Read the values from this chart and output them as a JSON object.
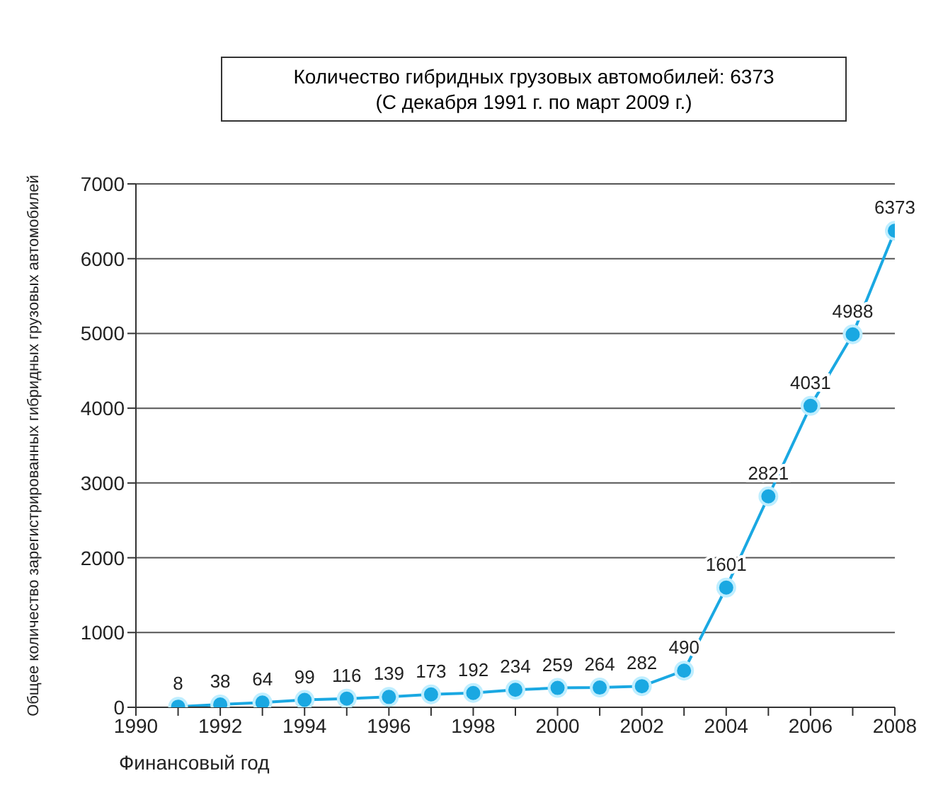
{
  "chart_data": {
    "type": "line",
    "ylabel": "Общее количество зарегистрированных гибридных грузовых автомобилей",
    "xlabel": "Финансовый год",
    "annotations": [
      "Количество гибридных грузовых автомобилей: 6373",
      "(С декабря 1991 г. по март 2009 г.)"
    ],
    "x": [
      1991,
      1992,
      1993,
      1994,
      1995,
      1996,
      1997,
      1998,
      1999,
      2000,
      2001,
      2002,
      2003,
      2004,
      2005,
      2006,
      2007,
      2008
    ],
    "series": [
      {
        "color": "#1aa8e2",
        "values": [
          8,
          38,
          64,
          99,
          116,
          139,
          173,
          192,
          234,
          259,
          264,
          282,
          490,
          1601,
          2821,
          4031,
          4988,
          6373
        ]
      }
    ],
    "xlim": [
      1990,
      2008
    ],
    "xticks": [
      1990,
      {
        "value": 1991,
        "label": null
      },
      1992,
      {
        "value": 1993,
        "label": null
      },
      1994,
      {
        "value": 1995,
        "label": null
      },
      1996,
      {
        "value": 1997,
        "label": null
      },
      1998,
      {
        "value": 1999,
        "label": null
      },
      2000,
      {
        "value": 2001,
        "label": null
      },
      2002,
      {
        "value": 2003,
        "label": null
      },
      2004,
      {
        "value": 2005,
        "label": null
      },
      2006,
      {
        "value": 2007,
        "label": null
      },
      2008
    ],
    "ylim": [
      0,
      7000
    ],
    "yticks": [
      0,
      1000,
      2000,
      3000,
      4000,
      5000,
      6000,
      7000
    ],
    "grid": "y",
    "legend": false,
    "marker": "circle",
    "line_style": "solid",
    "data_labels": true
  }
}
